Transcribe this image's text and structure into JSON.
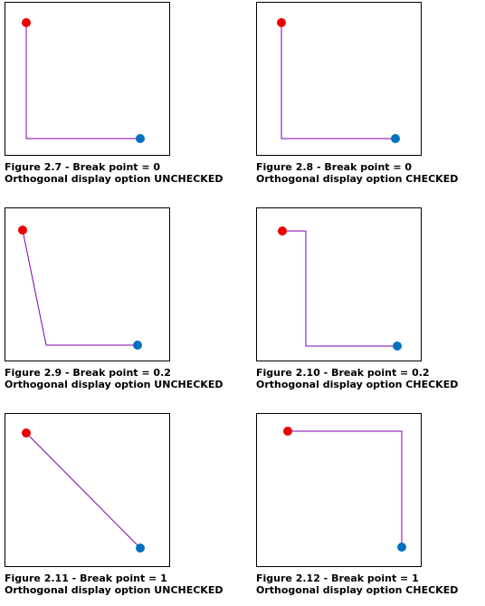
{
  "colors": {
    "connector_line": "#7f00b2",
    "start_point": "#ee0000",
    "end_point": "#0070c0",
    "frame_border": "#000000"
  },
  "figures": [
    {
      "caption_line1": "Figure 2.7 - Break point = 0",
      "caption_line2": "Orthogonal display option UNCHECKED",
      "break_point": 0,
      "orthogonal": false
    },
    {
      "caption_line1": "Figure 2.8 - Break point = 0",
      "caption_line2": "Orthogonal display option CHECKED",
      "break_point": 0,
      "orthogonal": true
    },
    {
      "caption_line1": "Figure 2.9 - Break point = 0.2",
      "caption_line2": "Orthogonal display option UNCHECKED",
      "break_point": 0.2,
      "orthogonal": false
    },
    {
      "caption_line1": "Figure 2.10 - Break point = 0.2",
      "caption_line2": "Orthogonal display option CHECKED",
      "break_point": 0.2,
      "orthogonal": true
    },
    {
      "caption_line1": "Figure 2.11 - Break point = 1",
      "caption_line2": "Orthogonal display option UNCHECKED",
      "break_point": 1,
      "orthogonal": false
    },
    {
      "caption_line1": "Figure 2.12 - Break point = 1",
      "caption_line2": "Orthogonal display option CHECKED",
      "break_point": 1,
      "orthogonal": true
    }
  ]
}
